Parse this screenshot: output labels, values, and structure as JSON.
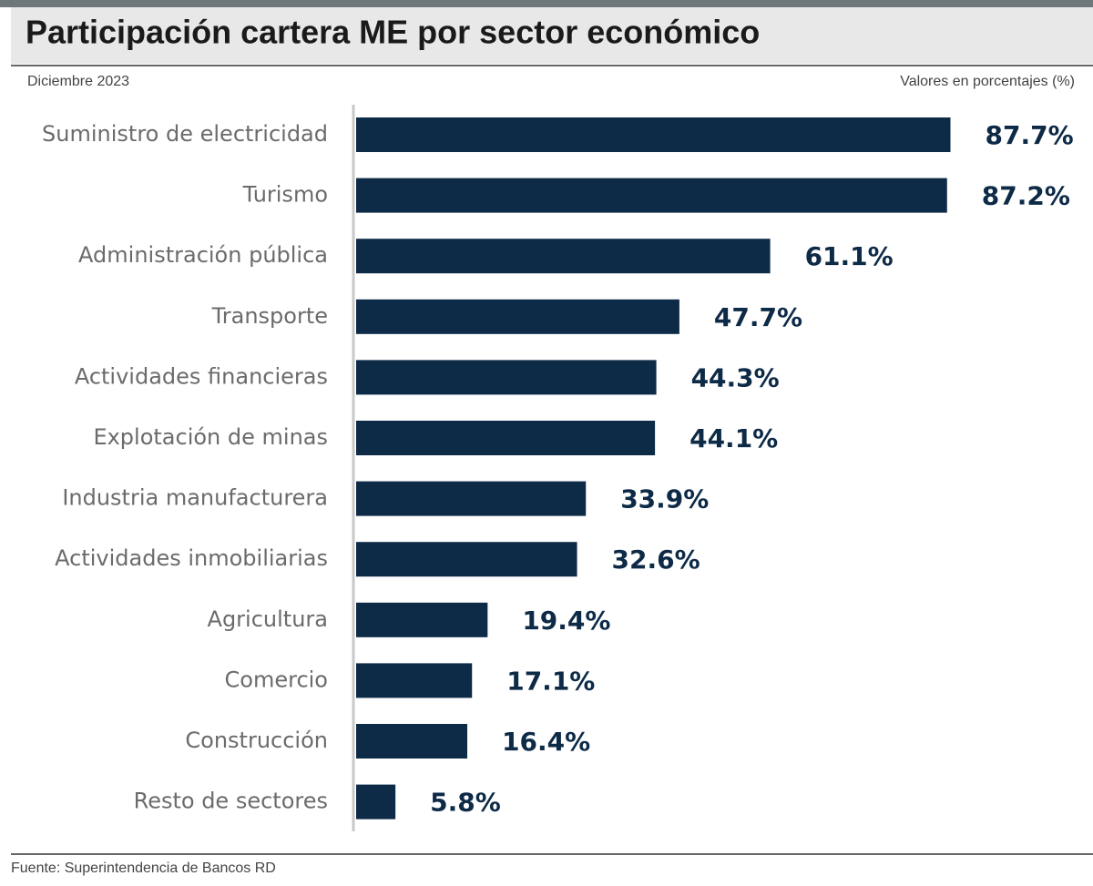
{
  "chart_data": {
    "type": "bar",
    "orientation": "horizontal",
    "title": "Participación cartera ME por sector económico",
    "subtitle": "Diciembre 2023",
    "unit_note": "Valores en porcentajes (%)",
    "source": "Fuente: Superintendencia de Bancos RD",
    "categories": [
      "Suministro de electricidad",
      "Turismo",
      "Administración pública",
      "Transporte",
      "Actividades financieras",
      "Explotación de minas",
      "Industria manufacturera",
      "Actividades inmobiliarias",
      "Agricultura",
      "Comercio",
      "Construcción",
      "Resto de sectores"
    ],
    "values": [
      87.7,
      87.2,
      61.1,
      47.7,
      44.3,
      44.1,
      33.9,
      32.6,
      19.4,
      17.1,
      16.4,
      5.8
    ],
    "value_labels": [
      "87.7%",
      "87.2%",
      "61.1%",
      "47.7%",
      "44.3%",
      "44.1%",
      "33.9%",
      "32.6%",
      "19.4%",
      "17.1%",
      "16.4%",
      "5.8%"
    ],
    "color": "#0d2a47",
    "xlim": [
      0,
      100
    ]
  }
}
